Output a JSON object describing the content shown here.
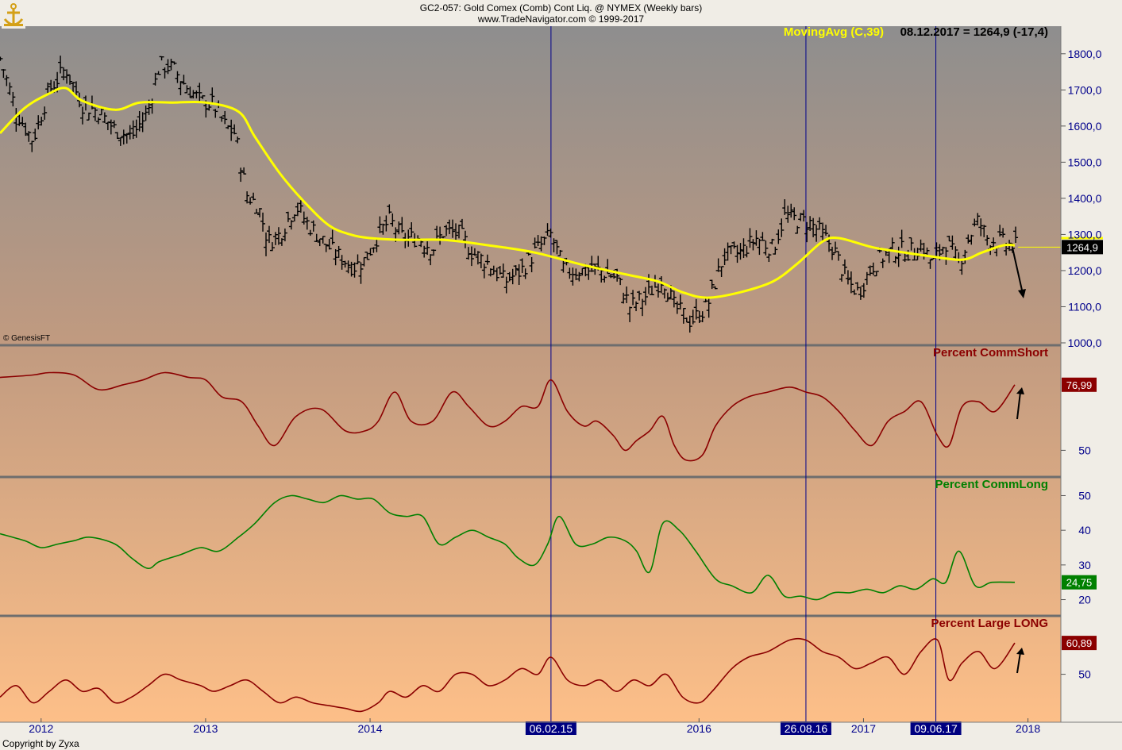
{
  "header": {
    "line1": "GC2-057:  Gold Comex (Comb) Cont Liq. @ NYMEX  (Weekly bars)",
    "line2": "www.TradeNavigator.com © 1999-2017"
  },
  "footer": {
    "copyright": "Copyright by Zyxa",
    "genesis": "© GenesisFT"
  },
  "colors": {
    "price_bars": "#000000",
    "moving_avg": "#ffff00",
    "comm_short": "#8b0000",
    "comm_long": "#008000",
    "large_long": "#8b0000",
    "date_marker_line": "#00008b",
    "date_marker_bg": "#000080",
    "bg_top": "#8e8e8e",
    "bg_bottom": "#fdbf88"
  },
  "chart_data": [
    {
      "type": "bar",
      "name": "price",
      "series_label": "MovingAvg (C,39)",
      "latest_value_label": "08.12.2017 = 1264,9 (-17,4)",
      "current_price_badge": "1264,9",
      "ylim": [
        1000,
        1850
      ],
      "yticks": [
        "1000,0",
        "1100,0",
        "1200,0",
        "1300,0",
        "1400,0",
        "1500,0",
        "1600,0",
        "1700,0",
        "1800,0"
      ],
      "ytick_values": [
        1000,
        1100,
        1200,
        1300,
        1400,
        1500,
        1600,
        1700,
        1800
      ],
      "close_anchors": [
        [
          2011.75,
          1790
        ],
        [
          2011.85,
          1640
        ],
        [
          2011.95,
          1560
        ],
        [
          2012.05,
          1700
        ],
        [
          2012.15,
          1760
        ],
        [
          2012.25,
          1660
        ],
        [
          2012.35,
          1640
        ],
        [
          2012.45,
          1590
        ],
        [
          2012.55,
          1570
        ],
        [
          2012.65,
          1640
        ],
        [
          2012.72,
          1770
        ],
        [
          2012.8,
          1760
        ],
        [
          2012.9,
          1700
        ],
        [
          2012.97,
          1670
        ],
        [
          2013.05,
          1660
        ],
        [
          2013.12,
          1600
        ],
        [
          2013.18,
          1580
        ],
        [
          2013.25,
          1410
        ],
        [
          2013.32,
          1380
        ],
        [
          2013.38,
          1280
        ],
        [
          2013.45,
          1300
        ],
        [
          2013.55,
          1380
        ],
        [
          2013.62,
          1330
        ],
        [
          2013.7,
          1290
        ],
        [
          2013.78,
          1250
        ],
        [
          2013.9,
          1210
        ],
        [
          2013.97,
          1230
        ],
        [
          2014.05,
          1300
        ],
        [
          2014.12,
          1340
        ],
        [
          2014.2,
          1290
        ],
        [
          2014.3,
          1290
        ],
        [
          2014.38,
          1260
        ],
        [
          2014.45,
          1310
        ],
        [
          2014.55,
          1300
        ],
        [
          2014.62,
          1250
        ],
        [
          2014.72,
          1220
        ],
        [
          2014.82,
          1170
        ],
        [
          2014.92,
          1200
        ],
        [
          2015.0,
          1250
        ],
        [
          2015.1,
          1300
        ],
        [
          2015.18,
          1200
        ],
        [
          2015.3,
          1200
        ],
        [
          2015.4,
          1200
        ],
        [
          2015.5,
          1180
        ],
        [
          2015.58,
          1100
        ],
        [
          2015.68,
          1130
        ],
        [
          2015.78,
          1180
        ],
        [
          2015.85,
          1100
        ],
        [
          2015.95,
          1060
        ],
        [
          2016.05,
          1100
        ],
        [
          2016.15,
          1240
        ],
        [
          2016.25,
          1250
        ],
        [
          2016.35,
          1290
        ],
        [
          2016.45,
          1260
        ],
        [
          2016.52,
          1350
        ],
        [
          2016.6,
          1340
        ],
        [
          2016.68,
          1330
        ],
        [
          2016.75,
          1300
        ],
        [
          2016.82,
          1260
        ],
        [
          2016.9,
          1170
        ],
        [
          2016.97,
          1140
        ],
        [
          2017.05,
          1210
        ],
        [
          2017.12,
          1240
        ],
        [
          2017.2,
          1260
        ],
        [
          2017.28,
          1250
        ],
        [
          2017.35,
          1270
        ],
        [
          2017.42,
          1220
        ],
        [
          2017.5,
          1280
        ],
        [
          2017.58,
          1220
        ],
        [
          2017.65,
          1300
        ],
        [
          2017.7,
          1340
        ],
        [
          2017.75,
          1290
        ],
        [
          2017.82,
          1280
        ],
        [
          2017.9,
          1270
        ],
        [
          2017.94,
          1265
        ]
      ],
      "moving_average": [
        [
          2011.75,
          1580
        ],
        [
          2011.9,
          1650
        ],
        [
          2012.05,
          1690
        ],
        [
          2012.15,
          1705
        ],
        [
          2012.25,
          1670
        ],
        [
          2012.45,
          1645
        ],
        [
          2012.6,
          1665
        ],
        [
          2012.8,
          1665
        ],
        [
          2013.0,
          1665
        ],
        [
          2013.2,
          1640
        ],
        [
          2013.3,
          1570
        ],
        [
          2013.45,
          1470
        ],
        [
          2013.6,
          1390
        ],
        [
          2013.75,
          1325
        ],
        [
          2013.88,
          1300
        ],
        [
          2014.0,
          1290
        ],
        [
          2014.2,
          1285
        ],
        [
          2014.45,
          1285
        ],
        [
          2014.72,
          1270
        ],
        [
          2015.0,
          1250
        ],
        [
          2015.3,
          1215
        ],
        [
          2015.55,
          1190
        ],
        [
          2015.75,
          1170
        ],
        [
          2015.9,
          1140
        ],
        [
          2016.05,
          1125
        ],
        [
          2016.25,
          1140
        ],
        [
          2016.45,
          1170
        ],
        [
          2016.6,
          1220
        ],
        [
          2016.75,
          1280
        ],
        [
          2016.85,
          1290
        ],
        [
          2017.05,
          1265
        ],
        [
          2017.25,
          1250
        ],
        [
          2017.4,
          1240
        ],
        [
          2017.6,
          1230
        ],
        [
          2017.72,
          1250
        ],
        [
          2017.85,
          1270
        ],
        [
          2017.92,
          1270
        ]
      ]
    },
    {
      "type": "line",
      "name": "Percent CommShort",
      "title": "Percent CommShort",
      "latest_value": "76,99",
      "ylim": [
        40,
        90
      ],
      "yticks": [
        "50"
      ],
      "ytick_values": [
        50
      ],
      "points": [
        [
          2011.75,
          80
        ],
        [
          2011.95,
          81
        ],
        [
          2012.05,
          82
        ],
        [
          2012.2,
          81
        ],
        [
          2012.35,
          75
        ],
        [
          2012.5,
          77
        ],
        [
          2012.62,
          79
        ],
        [
          2012.75,
          82
        ],
        [
          2012.9,
          80
        ],
        [
          2013.0,
          79
        ],
        [
          2013.1,
          72
        ],
        [
          2013.22,
          70
        ],
        [
          2013.32,
          60
        ],
        [
          2013.42,
          52
        ],
        [
          2013.55,
          64
        ],
        [
          2013.7,
          67
        ],
        [
          2013.85,
          58
        ],
        [
          2013.97,
          58
        ],
        [
          2014.05,
          62
        ],
        [
          2014.15,
          74
        ],
        [
          2014.25,
          62
        ],
        [
          2014.38,
          62
        ],
        [
          2014.5,
          74
        ],
        [
          2014.6,
          68
        ],
        [
          2014.72,
          60
        ],
        [
          2014.82,
          62
        ],
        [
          2014.92,
          68
        ],
        [
          2015.02,
          68
        ],
        [
          2015.1,
          79
        ],
        [
          2015.2,
          66
        ],
        [
          2015.3,
          60
        ],
        [
          2015.38,
          62
        ],
        [
          2015.48,
          56
        ],
        [
          2015.55,
          50
        ],
        [
          2015.62,
          54
        ],
        [
          2015.7,
          58
        ],
        [
          2015.78,
          64
        ],
        [
          2015.85,
          52
        ],
        [
          2015.92,
          46
        ],
        [
          2016.02,
          48
        ],
        [
          2016.1,
          60
        ],
        [
          2016.2,
          68
        ],
        [
          2016.3,
          72
        ],
        [
          2016.42,
          74
        ],
        [
          2016.55,
          76
        ],
        [
          2016.65,
          74
        ],
        [
          2016.75,
          72
        ],
        [
          2016.85,
          66
        ],
        [
          2016.95,
          58
        ],
        [
          2017.05,
          52
        ],
        [
          2017.15,
          62
        ],
        [
          2017.25,
          66
        ],
        [
          2017.35,
          70
        ],
        [
          2017.45,
          56
        ],
        [
          2017.52,
          52
        ],
        [
          2017.6,
          68
        ],
        [
          2017.7,
          70
        ],
        [
          2017.8,
          66
        ],
        [
          2017.92,
          77
        ]
      ]
    },
    {
      "type": "line",
      "name": "Percent CommLong",
      "title": "Percent CommLong",
      "latest_value": "24,75",
      "ylim": [
        16,
        54
      ],
      "yticks": [
        "20",
        "30",
        "40",
        "50"
      ],
      "ytick_values": [
        20,
        30,
        40,
        50
      ],
      "points": [
        [
          2011.75,
          39
        ],
        [
          2011.9,
          37
        ],
        [
          2012.0,
          35
        ],
        [
          2012.1,
          36
        ],
        [
          2012.2,
          37
        ],
        [
          2012.3,
          38
        ],
        [
          2012.45,
          36
        ],
        [
          2012.55,
          32
        ],
        [
          2012.65,
          29
        ],
        [
          2012.72,
          31
        ],
        [
          2012.85,
          33
        ],
        [
          2012.97,
          35
        ],
        [
          2013.08,
          34
        ],
        [
          2013.2,
          38
        ],
        [
          2013.3,
          42
        ],
        [
          2013.42,
          48
        ],
        [
          2013.52,
          50
        ],
        [
          2013.62,
          49
        ],
        [
          2013.72,
          48
        ],
        [
          2013.82,
          50
        ],
        [
          2013.92,
          49
        ],
        [
          2014.02,
          49
        ],
        [
          2014.12,
          45
        ],
        [
          2014.22,
          44
        ],
        [
          2014.32,
          44
        ],
        [
          2014.42,
          36
        ],
        [
          2014.52,
          38
        ],
        [
          2014.62,
          40
        ],
        [
          2014.72,
          38
        ],
        [
          2014.82,
          36
        ],
        [
          2014.9,
          32
        ],
        [
          2015.0,
          30
        ],
        [
          2015.08,
          36
        ],
        [
          2015.15,
          44
        ],
        [
          2015.25,
          36
        ],
        [
          2015.35,
          36
        ],
        [
          2015.45,
          38
        ],
        [
          2015.55,
          37
        ],
        [
          2015.62,
          34
        ],
        [
          2015.7,
          28
        ],
        [
          2015.78,
          42
        ],
        [
          2015.88,
          40
        ],
        [
          2015.98,
          34
        ],
        [
          2016.1,
          26
        ],
        [
          2016.2,
          24
        ],
        [
          2016.32,
          22
        ],
        [
          2016.42,
          27
        ],
        [
          2016.52,
          21
        ],
        [
          2016.62,
          21
        ],
        [
          2016.72,
          20
        ],
        [
          2016.82,
          22
        ],
        [
          2016.92,
          22
        ],
        [
          2017.02,
          23
        ],
        [
          2017.12,
          22
        ],
        [
          2017.22,
          24
        ],
        [
          2017.32,
          23
        ],
        [
          2017.42,
          26
        ],
        [
          2017.5,
          25
        ],
        [
          2017.58,
          34
        ],
        [
          2017.68,
          24
        ],
        [
          2017.78,
          25
        ],
        [
          2017.92,
          25
        ]
      ]
    },
    {
      "type": "line",
      "name": "Percent Large LONG",
      "title": "Percent Large LONG",
      "latest_value": "60,89",
      "ylim": [
        34,
        68
      ],
      "yticks": [
        "50"
      ],
      "ytick_values": [
        50
      ],
      "points": [
        [
          2011.75,
          42
        ],
        [
          2011.85,
          46
        ],
        [
          2011.95,
          40
        ],
        [
          2012.05,
          44
        ],
        [
          2012.15,
          48
        ],
        [
          2012.25,
          44
        ],
        [
          2012.35,
          45
        ],
        [
          2012.45,
          40
        ],
        [
          2012.55,
          42
        ],
        [
          2012.65,
          46
        ],
        [
          2012.75,
          50
        ],
        [
          2012.85,
          48
        ],
        [
          2012.97,
          46
        ],
        [
          2013.05,
          44
        ],
        [
          2013.15,
          46
        ],
        [
          2013.25,
          48
        ],
        [
          2013.35,
          44
        ],
        [
          2013.45,
          40
        ],
        [
          2013.55,
          42
        ],
        [
          2013.65,
          40
        ],
        [
          2013.75,
          39
        ],
        [
          2013.85,
          38
        ],
        [
          2013.95,
          37
        ],
        [
          2014.05,
          40
        ],
        [
          2014.12,
          44
        ],
        [
          2014.22,
          42
        ],
        [
          2014.32,
          46
        ],
        [
          2014.42,
          44
        ],
        [
          2014.52,
          50
        ],
        [
          2014.62,
          50
        ],
        [
          2014.72,
          46
        ],
        [
          2014.82,
          48
        ],
        [
          2014.92,
          52
        ],
        [
          2015.02,
          50
        ],
        [
          2015.1,
          56
        ],
        [
          2015.2,
          48
        ],
        [
          2015.3,
          46
        ],
        [
          2015.4,
          48
        ],
        [
          2015.5,
          44
        ],
        [
          2015.6,
          48
        ],
        [
          2015.7,
          46
        ],
        [
          2015.8,
          50
        ],
        [
          2015.9,
          42
        ],
        [
          2016.0,
          40
        ],
        [
          2016.08,
          44
        ],
        [
          2016.2,
          52
        ],
        [
          2016.3,
          56
        ],
        [
          2016.42,
          58
        ],
        [
          2016.55,
          62
        ],
        [
          2016.65,
          62
        ],
        [
          2016.75,
          58
        ],
        [
          2016.85,
          56
        ],
        [
          2016.95,
          52
        ],
        [
          2017.05,
          54
        ],
        [
          2017.15,
          56
        ],
        [
          2017.25,
          50
        ],
        [
          2017.35,
          58
        ],
        [
          2017.45,
          62
        ],
        [
          2017.52,
          48
        ],
        [
          2017.6,
          54
        ],
        [
          2017.7,
          58
        ],
        [
          2017.8,
          52
        ],
        [
          2017.92,
          61
        ]
      ]
    }
  ],
  "x_axis": {
    "year_labels": [
      {
        "label": "2012",
        "x": 2012.0
      },
      {
        "label": "2013",
        "x": 2013.0
      },
      {
        "label": "2014",
        "x": 2014.0
      },
      {
        "label": "2016",
        "x": 2016.0
      },
      {
        "label": "2017",
        "x": 2017.0
      },
      {
        "label": "2018",
        "x": 2018.0
      }
    ],
    "date_markers": [
      {
        "label": "06.02.15",
        "x": 2015.1
      },
      {
        "label": "26.08.16",
        "x": 2016.65
      },
      {
        "label": "09.06.17",
        "x": 2017.44
      }
    ],
    "xlim": [
      2011.75,
      2018.2
    ]
  }
}
